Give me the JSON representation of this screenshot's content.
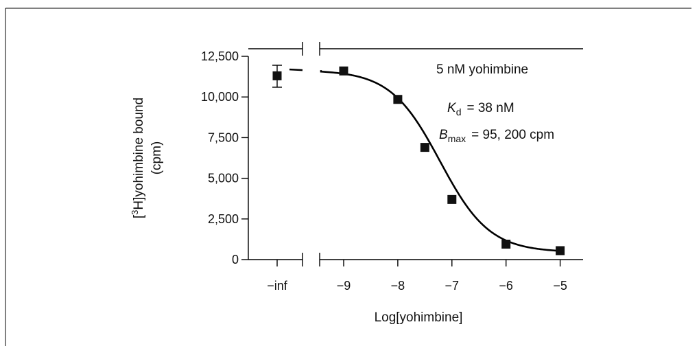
{
  "chart_data": {
    "type": "scatter",
    "xlabel": "Log[yohimbine]",
    "ylabel": {
      "prefix": "[",
      "superscript": "3",
      "rest": "H]yohimbine bound",
      "unit": "(cpm)"
    },
    "ylim": [
      0,
      12500
    ],
    "yticks": [
      0,
      2500,
      5000,
      7500,
      10000,
      12500
    ],
    "ytick_labels": [
      "0",
      "2,500",
      "5,000",
      "7,500",
      "10,000",
      "12,500"
    ],
    "xticks": [
      -9,
      -8,
      -7,
      -6,
      -5
    ],
    "xtick_labels": [
      "−9",
      "−8",
      "−7",
      "−6",
      "−5"
    ],
    "xlim": [
      -9.5,
      -4.6
    ],
    "inf_label": "−inf",
    "points": [
      {
        "x": -9,
        "y": 11600
      },
      {
        "x": -8,
        "y": 9850
      },
      {
        "x": -7.5,
        "y": 6900
      },
      {
        "x": -7,
        "y": 3700
      },
      {
        "x": -6,
        "y": 950
      },
      {
        "x": -5,
        "y": 550
      }
    ],
    "inf_point": {
      "y": 11300,
      "err_low": 10600,
      "err_high": 11950
    },
    "fit": {
      "top": 11650,
      "bottom": 450,
      "log_ic50": -7.22,
      "hill": 0.95
    },
    "annotations": {
      "concentration": "5 nM yohimbine",
      "kd_symbol": "K",
      "kd_sub": "d",
      "kd_value": "= 38 nM",
      "bmax_symbol": "B",
      "bmax_sub": "max",
      "bmax_value": "= 95, 200 cpm"
    }
  }
}
